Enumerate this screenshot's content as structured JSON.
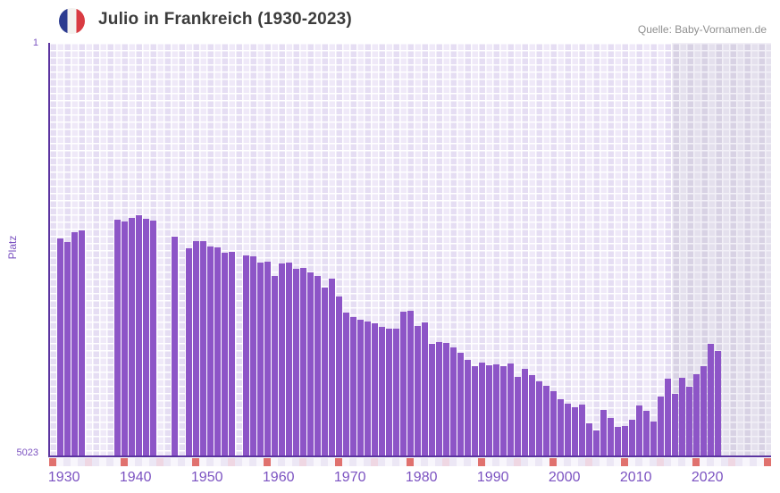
{
  "header": {
    "title": "Julio in Frankreich (1930-2023)",
    "source": "Quelle: Baby-Vornamen.de",
    "flag_icon": "france-flag-icon"
  },
  "axes": {
    "y_label": "Platz",
    "y_top_tick": "1",
    "y_bottom_tick": "5023",
    "x_tick_years": [
      1930,
      1940,
      1950,
      1960,
      1970,
      1980,
      1990,
      2000,
      2010,
      2020
    ]
  },
  "colors": {
    "bar": "#8d55c7",
    "axis_line": "#5b34a0",
    "tick_text": "#7b52c1",
    "title_text": "#3c3c3c",
    "source_text": "#8f8f8f",
    "plot_bg": "#efe9f8",
    "no_data_bg": "#e4e0ed",
    "rug_decade": "#e0716e",
    "rug_half_decade": "#efd7e3",
    "rug_even": "#ece7f5",
    "rug_odd": "#f8f6fc",
    "flag_blue": "#2c3b90",
    "flag_white": "#f4f2ef",
    "flag_red": "#d93b42"
  },
  "chart_data": {
    "type": "bar",
    "title": "Julio in Frankreich (1930-2023)",
    "xlabel": "",
    "ylabel": "Platz",
    "y_axis_inverted": true,
    "ylim": [
      1,
      5023
    ],
    "x_axis_shown_range": [
      1930,
      2030
    ],
    "grid": true,
    "legend_position": "none",
    "years": [
      1930,
      1931,
      1932,
      1933,
      1934,
      1935,
      1936,
      1937,
      1938,
      1939,
      1940,
      1941,
      1942,
      1943,
      1944,
      1945,
      1946,
      1947,
      1948,
      1949,
      1950,
      1951,
      1952,
      1953,
      1954,
      1955,
      1956,
      1957,
      1958,
      1959,
      1960,
      1961,
      1962,
      1963,
      1964,
      1965,
      1966,
      1967,
      1968,
      1969,
      1970,
      1971,
      1972,
      1973,
      1974,
      1975,
      1976,
      1977,
      1978,
      1979,
      1980,
      1981,
      1982,
      1983,
      1984,
      1985,
      1986,
      1987,
      1988,
      1989,
      1990,
      1991,
      1992,
      1993,
      1994,
      1995,
      1996,
      1997,
      1998,
      1999,
      2000,
      2001,
      2002,
      2003,
      2004,
      2005,
      2006,
      2007,
      2008,
      2009,
      2010,
      2011,
      2012,
      2013,
      2014,
      2015,
      2016,
      2017,
      2018,
      2019,
      2020,
      2021,
      2022
    ],
    "ranks": [
      2375,
      2420,
      2300,
      2280,
      null,
      null,
      null,
      null,
      2150,
      2175,
      2125,
      2095,
      2135,
      2160,
      null,
      null,
      2355,
      null,
      2500,
      2410,
      2410,
      2475,
      2480,
      2545,
      2535,
      null,
      2580,
      2590,
      2670,
      2660,
      2830,
      2685,
      2665,
      2740,
      2735,
      2790,
      2830,
      2975,
      2860,
      3080,
      3275,
      3330,
      3365,
      3390,
      3410,
      3445,
      3470,
      3470,
      3270,
      3260,
      3440,
      3395,
      3655,
      3640,
      3650,
      3705,
      3765,
      3850,
      3925,
      3885,
      3920,
      3905,
      3925,
      3895,
      4055,
      3965,
      4035,
      4110,
      4170,
      4235,
      4330,
      4380,
      4425,
      4390,
      4625,
      4705,
      4460,
      4560,
      4660,
      4650,
      4580,
      4405,
      4475,
      4600,
      4295,
      4075,
      4260,
      4070,
      4180,
      4025,
      3925,
      3655,
      3745
    ],
    "missing_years": [
      1934,
      1935,
      1936,
      1937,
      1944,
      1945,
      1947,
      1955,
      2023
    ],
    "no_data_band_years": [
      2023,
      2030
    ],
    "rug_year_range": [
      1930,
      2030
    ]
  }
}
